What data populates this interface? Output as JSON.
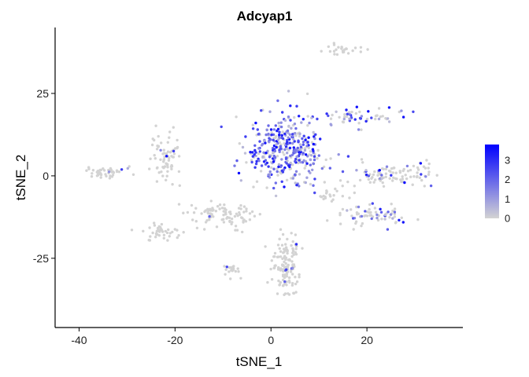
{
  "chart_data": {
    "type": "scatter",
    "title": "Adcyap1",
    "xlabel": "tSNE_1",
    "ylabel": "tSNE_2",
    "xlim": [
      -45,
      40
    ],
    "ylim": [
      -46,
      45
    ],
    "xticks": [
      -40,
      -20,
      0,
      20
    ],
    "yticks": [
      -25,
      0,
      25
    ],
    "grid": false,
    "legend": {
      "position": "right",
      "ticks": [
        0,
        1,
        2,
        3
      ],
      "min": 0,
      "max": 3.8,
      "low_color": "#d3d3d3",
      "high_color": "#0000ff"
    },
    "clusters": [
      {
        "cx": 3,
        "cy": 8,
        "rx": 8,
        "ry": 11,
        "n": 380,
        "expr": 0.72
      },
      {
        "cx": -22,
        "cy": 5,
        "rx": 3,
        "ry": 8,
        "n": 70,
        "expr": 0.05
      },
      {
        "cx": -34,
        "cy": 1,
        "rx": 5,
        "ry": 2,
        "n": 45,
        "expr": 0.05
      },
      {
        "cx": 3,
        "cy": -27,
        "rx": 3,
        "ry": 9,
        "n": 140,
        "expr": 0.02
      },
      {
        "cx": -10,
        "cy": -12,
        "rx": 7,
        "ry": 4,
        "n": 90,
        "expr": 0.02
      },
      {
        "cx": -23,
        "cy": -17,
        "rx": 4,
        "ry": 3,
        "n": 40,
        "expr": 0.01
      },
      {
        "cx": -8,
        "cy": -29,
        "rx": 2,
        "ry": 2,
        "n": 20,
        "expr": 0.03
      },
      {
        "cx": 22,
        "cy": -12,
        "rx": 7,
        "ry": 3,
        "n": 70,
        "expr": 0.35
      },
      {
        "cx": 24,
        "cy": 0,
        "rx": 8,
        "ry": 3,
        "n": 80,
        "expr": 0.2
      },
      {
        "cx": 18,
        "cy": 18,
        "rx": 8,
        "ry": 3,
        "n": 60,
        "expr": 0.55
      },
      {
        "cx": 15,
        "cy": 38,
        "rx": 4,
        "ry": 2,
        "n": 25,
        "expr": 0.0
      },
      {
        "cx": 32,
        "cy": 0,
        "rx": 2,
        "ry": 5,
        "n": 20,
        "expr": 0.2
      },
      {
        "cx": 13,
        "cy": -6,
        "rx": 4,
        "ry": 2,
        "n": 20,
        "expr": 0.05
      }
    ]
  }
}
